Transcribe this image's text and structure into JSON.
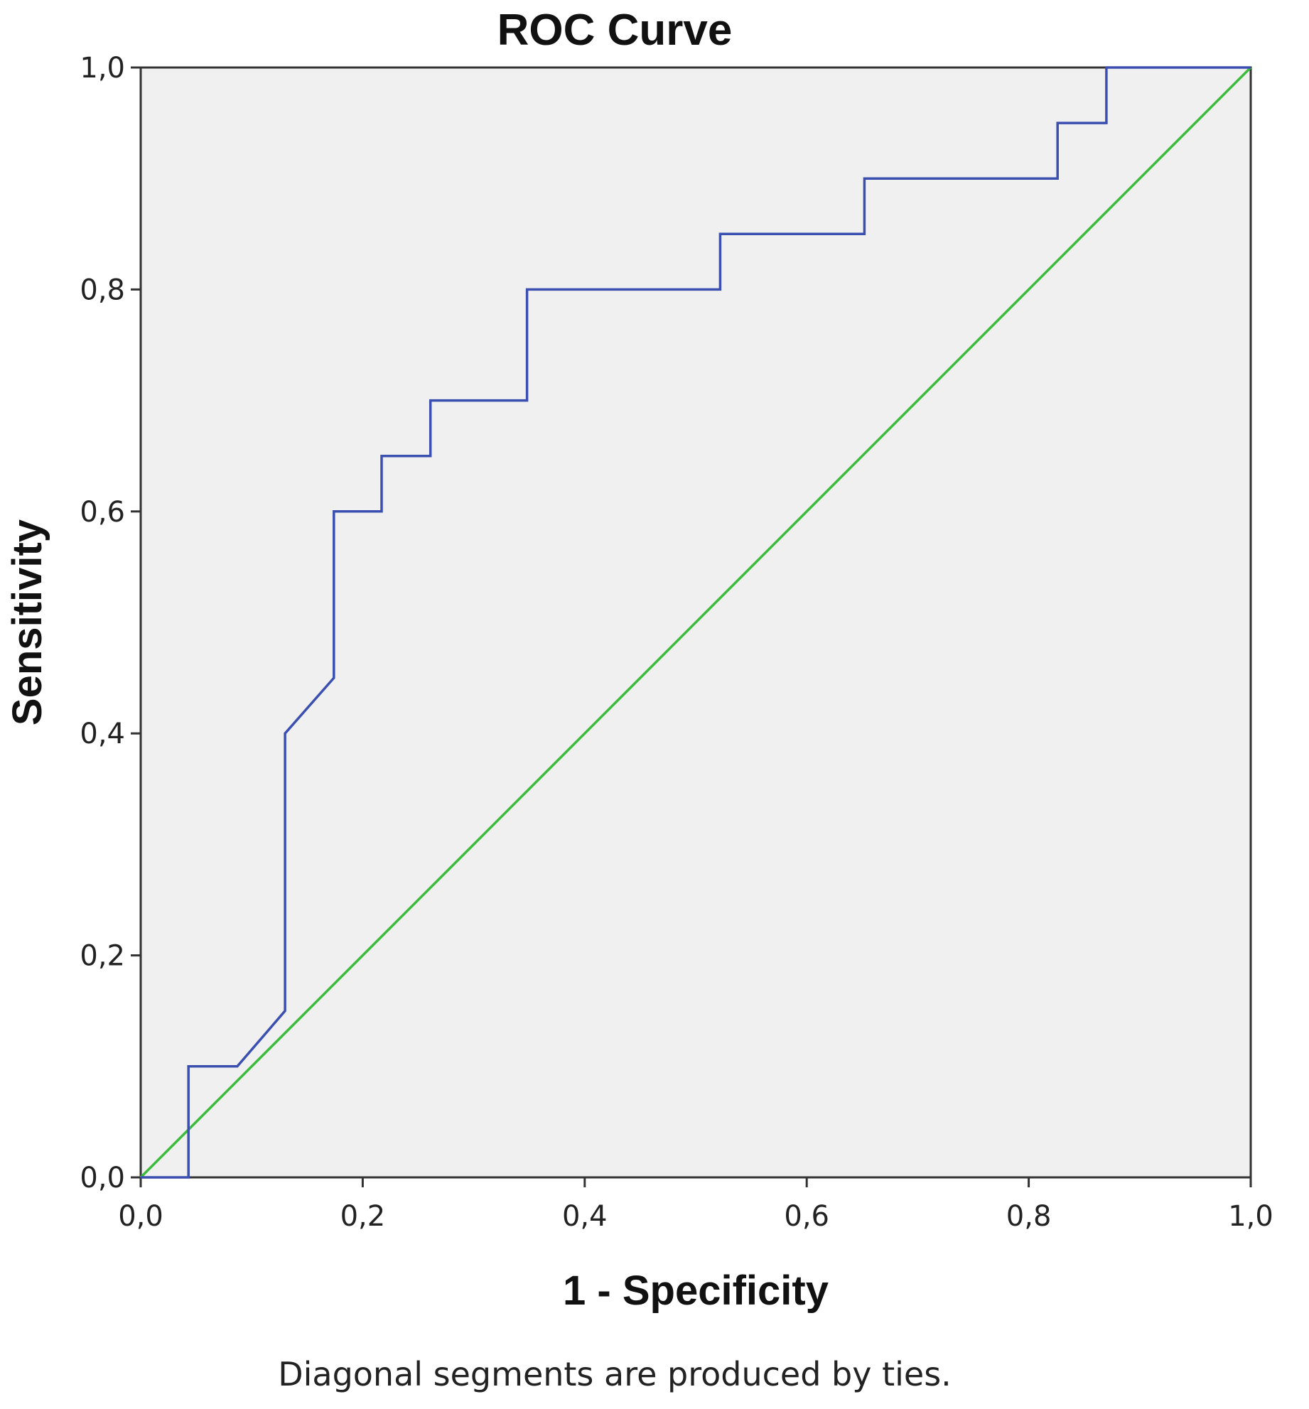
{
  "chart_data": {
    "type": "line",
    "title": "ROC Curve",
    "xlabel": "1 - Specificity",
    "ylabel": "Sensitivity",
    "xlim": [
      0,
      1
    ],
    "ylim": [
      0,
      1
    ],
    "x_ticks": [
      "0,0",
      "0,2",
      "0,4",
      "0,6",
      "0,8",
      "1,0"
    ],
    "y_ticks": [
      "0,0",
      "0,2",
      "0,4",
      "0,6",
      "0,8",
      "1,0"
    ],
    "grid": false,
    "footnote": "Diagonal segments are produced by ties.",
    "colors": {
      "plot_background": "#f0f0f0",
      "roc_line": "#3b4fb0",
      "reference_line": "#3dbb3d"
    },
    "series": [
      {
        "role": "roc-curve",
        "points": [
          [
            0.0,
            0.0
          ],
          [
            0.043,
            0.0
          ],
          [
            0.043,
            0.1
          ],
          [
            0.087,
            0.1
          ],
          [
            0.13,
            0.15
          ],
          [
            0.13,
            0.4
          ],
          [
            0.174,
            0.45
          ],
          [
            0.174,
            0.6
          ],
          [
            0.217,
            0.6
          ],
          [
            0.217,
            0.65
          ],
          [
            0.261,
            0.65
          ],
          [
            0.261,
            0.7
          ],
          [
            0.348,
            0.7
          ],
          [
            0.348,
            0.8
          ],
          [
            0.522,
            0.8
          ],
          [
            0.522,
            0.85
          ],
          [
            0.652,
            0.85
          ],
          [
            0.652,
            0.9
          ],
          [
            0.826,
            0.9
          ],
          [
            0.826,
            0.95
          ],
          [
            0.87,
            0.95
          ],
          [
            0.87,
            1.0
          ],
          [
            1.0,
            1.0
          ]
        ]
      },
      {
        "role": "reference-line",
        "points": [
          [
            0.0,
            0.0
          ],
          [
            1.0,
            1.0
          ]
        ]
      }
    ]
  }
}
